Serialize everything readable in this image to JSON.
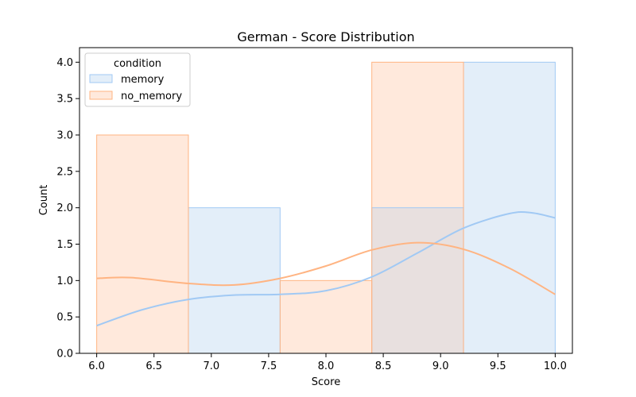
{
  "chart_data": {
    "type": "histogram",
    "title": "German - Score Distribution",
    "xlabel": "Score",
    "ylabel": "Count",
    "xlim": [
      5.85,
      10.15
    ],
    "ylim": [
      0,
      4.2
    ],
    "xticks": [
      "6.0",
      "6.5",
      "7.0",
      "7.5",
      "8.0",
      "8.5",
      "9.0",
      "9.5",
      "10.0"
    ],
    "yticks": [
      "0.0",
      "0.5",
      "1.0",
      "1.5",
      "2.0",
      "2.5",
      "3.0",
      "3.5",
      "4.0"
    ],
    "bin_edges": [
      6.0,
      6.8,
      7.6,
      8.4,
      9.2,
      10.0
    ],
    "legend": {
      "title": "condition",
      "position": "top-left"
    },
    "series": [
      {
        "name": "memory",
        "counts": [
          0,
          2,
          0,
          2,
          4
        ],
        "fill": "#e3eef9",
        "edge": "#a1c9f4",
        "kde": [
          [
            6.0,
            0.38
          ],
          [
            6.4,
            0.6
          ],
          [
            6.8,
            0.74
          ],
          [
            7.2,
            0.8
          ],
          [
            7.6,
            0.81
          ],
          [
            8.0,
            0.86
          ],
          [
            8.4,
            1.05
          ],
          [
            8.8,
            1.38
          ],
          [
            9.2,
            1.72
          ],
          [
            9.6,
            1.92
          ],
          [
            9.8,
            1.93
          ],
          [
            10.0,
            1.86
          ]
        ]
      },
      {
        "name": "no_memory",
        "counts": [
          3,
          0,
          1,
          4,
          0
        ],
        "fill": "#ffe9dc",
        "edge": "#ffb482",
        "kde": [
          [
            6.0,
            1.03
          ],
          [
            6.3,
            1.04
          ],
          [
            6.8,
            0.96
          ],
          [
            7.2,
            0.94
          ],
          [
            7.6,
            1.03
          ],
          [
            8.0,
            1.2
          ],
          [
            8.4,
            1.42
          ],
          [
            8.8,
            1.52
          ],
          [
            9.2,
            1.43
          ],
          [
            9.6,
            1.17
          ],
          [
            10.0,
            0.81
          ]
        ]
      }
    ],
    "overlap_fill": "#e8e0df"
  }
}
